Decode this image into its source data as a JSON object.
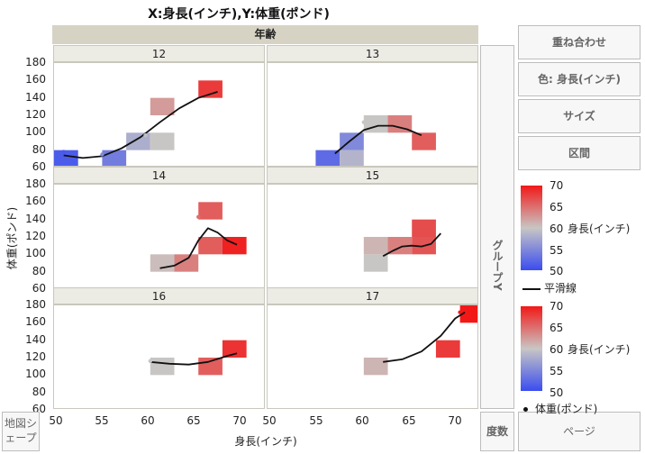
{
  "title": "X:身長(インチ),Y:体重(ポンド)",
  "group_x_label": "年齢",
  "x_axis_title": "身長(インチ)",
  "y_axis_title": "体重(ポンド)",
  "wrap_label": "グループY",
  "buttons": {
    "overlay": "重ね合わせ",
    "color": "色: 身長(インチ)",
    "size": "サイズ",
    "interval": "区間",
    "map_shape": "地図シェープ",
    "frequency": "度数",
    "page": "ページ"
  },
  "legend": {
    "color_title": "身長(インチ)",
    "color_ticks": [
      "70",
      "65",
      "60",
      "55",
      "50"
    ],
    "smoother_label": "平滑線",
    "point_label": "体重(ポンド)",
    "colors": {
      "low": "#3a4cf0",
      "mid": "#c8c6c4",
      "high": "#f21818"
    }
  },
  "chart_data": {
    "type": "heatmap",
    "title": "X:身長(インチ),Y:体重(ポンド)",
    "xlabel": "身長(インチ)",
    "ylabel": "体重(ポンド)",
    "xlim": [
      50,
      72
    ],
    "x_ticks": [
      "50",
      "55",
      "60",
      "65",
      "70"
    ],
    "bin_width_x": 2.5,
    "bin_height_y": 20,
    "color_by": "身長(インチ)",
    "color_range": [
      50,
      70
    ],
    "panels": [
      {
        "age": "12",
        "ylim": [
          60,
          180
        ],
        "y_ticks": [
          "60",
          "80",
          "100",
          "120",
          "140",
          "160",
          "180"
        ],
        "cells": [
          {
            "x": 51.25,
            "y": 70,
            "c": 51.3
          },
          {
            "x": 56.25,
            "y": 70,
            "c": 54.0
          },
          {
            "x": 58.75,
            "y": 90,
            "c": 58.0
          },
          {
            "x": 61.25,
            "y": 90,
            "c": 60.0
          },
          {
            "x": 61.25,
            "y": 130,
            "c": 62.5
          },
          {
            "x": 66.25,
            "y": 150,
            "c": 68.0
          }
        ],
        "points": [
          {
            "x": 51,
            "y": 78
          },
          {
            "x": 55,
            "y": 75
          },
          {
            "x": 59.5,
            "y": 97
          }
        ],
        "smoother": [
          [
            51,
            74
          ],
          [
            53,
            71
          ],
          [
            55,
            73
          ],
          [
            57,
            82
          ],
          [
            59,
            95
          ],
          [
            61,
            112
          ],
          [
            63,
            128
          ],
          [
            65,
            140
          ],
          [
            67,
            147
          ]
        ]
      },
      {
        "age": "13",
        "ylim": [
          60,
          180
        ],
        "y_ticks": [
          "60",
          "80",
          "100",
          "120",
          "140",
          "160",
          "180"
        ],
        "cells": [
          {
            "x": 56.25,
            "y": 70,
            "c": 52.5
          },
          {
            "x": 58.75,
            "y": 70,
            "c": 58.5
          },
          {
            "x": 58.75,
            "y": 90,
            "c": 55.0
          },
          {
            "x": 61.25,
            "y": 110,
            "c": 60.0
          },
          {
            "x": 63.75,
            "y": 110,
            "c": 64.0
          },
          {
            "x": 66.25,
            "y": 90,
            "c": 66.0
          }
        ],
        "points": [
          {
            "x": 60,
            "y": 112
          }
        ],
        "smoother": [
          [
            57,
            76
          ],
          [
            58.5,
            90
          ],
          [
            60,
            103
          ],
          [
            61.5,
            108
          ],
          [
            63,
            108
          ],
          [
            64.5,
            104
          ],
          [
            66,
            97
          ]
        ]
      },
      {
        "age": "14",
        "ylim": [
          60,
          180
        ],
        "y_ticks": [
          "60",
          "80",
          "100",
          "120",
          "140",
          "160",
          "180"
        ],
        "cells": [
          {
            "x": 61.25,
            "y": 90,
            "c": 60.5
          },
          {
            "x": 63.75,
            "y": 90,
            "c": 64.0
          },
          {
            "x": 66.25,
            "y": 110,
            "c": 66.0
          },
          {
            "x": 66.25,
            "y": 150,
            "c": 66.0
          },
          {
            "x": 68.75,
            "y": 110,
            "c": 69.5
          }
        ],
        "points": [
          {
            "x": 65,
            "y": 143
          }
        ],
        "smoother": [
          [
            61,
            84
          ],
          [
            62.5,
            87
          ],
          [
            64,
            96
          ],
          [
            65,
            116
          ],
          [
            66,
            130
          ],
          [
            67,
            125
          ],
          [
            68,
            116
          ],
          [
            69,
            111
          ]
        ]
      },
      {
        "age": "15",
        "ylim": [
          60,
          180
        ],
        "y_ticks": [
          "60",
          "80",
          "100",
          "120",
          "140",
          "160",
          "180"
        ],
        "cells": [
          {
            "x": 61.25,
            "y": 90,
            "c": 60.0
          },
          {
            "x": 61.25,
            "y": 110,
            "c": 61.0
          },
          {
            "x": 63.75,
            "y": 110,
            "c": 64.0
          },
          {
            "x": 66.25,
            "y": 110,
            "c": 66.5
          },
          {
            "x": 66.25,
            "y": 130,
            "c": 67.0
          }
        ],
        "points": [],
        "smoother": [
          [
            62,
            98
          ],
          [
            63,
            104
          ],
          [
            64,
            109
          ],
          [
            65,
            110
          ],
          [
            66,
            109
          ],
          [
            67,
            112
          ],
          [
            68,
            124
          ]
        ]
      },
      {
        "age": "16",
        "ylim": [
          60,
          180
        ],
        "y_ticks": [
          "60",
          "80",
          "100",
          "120",
          "140",
          "160",
          "180"
        ],
        "cells": [
          {
            "x": 61.25,
            "y": 110,
            "c": 60.0
          },
          {
            "x": 66.25,
            "y": 110,
            "c": 66.0
          },
          {
            "x": 68.75,
            "y": 130,
            "c": 68.5
          }
        ],
        "points": [
          {
            "x": 60,
            "y": 116
          }
        ],
        "smoother": [
          [
            60,
            115
          ],
          [
            62,
            113
          ],
          [
            64,
            112
          ],
          [
            66,
            115
          ],
          [
            68,
            122
          ],
          [
            69,
            125
          ]
        ]
      },
      {
        "age": "17",
        "ylim": [
          60,
          180
        ],
        "y_ticks": [
          "60",
          "80",
          "100",
          "120",
          "140",
          "160",
          "180"
        ],
        "cells": [
          {
            "x": 61.25,
            "y": 110,
            "c": 61.0
          },
          {
            "x": 68.75,
            "y": 130,
            "c": 68.0
          },
          {
            "x": 71.25,
            "y": 170,
            "c": 70.0
          }
        ],
        "points": [
          {
            "x": 70,
            "y": 172
          }
        ],
        "smoother": [
          [
            62,
            115
          ],
          [
            64,
            118
          ],
          [
            66,
            127
          ],
          [
            68,
            145
          ],
          [
            69.5,
            165
          ],
          [
            70.5,
            172
          ]
        ]
      }
    ]
  }
}
